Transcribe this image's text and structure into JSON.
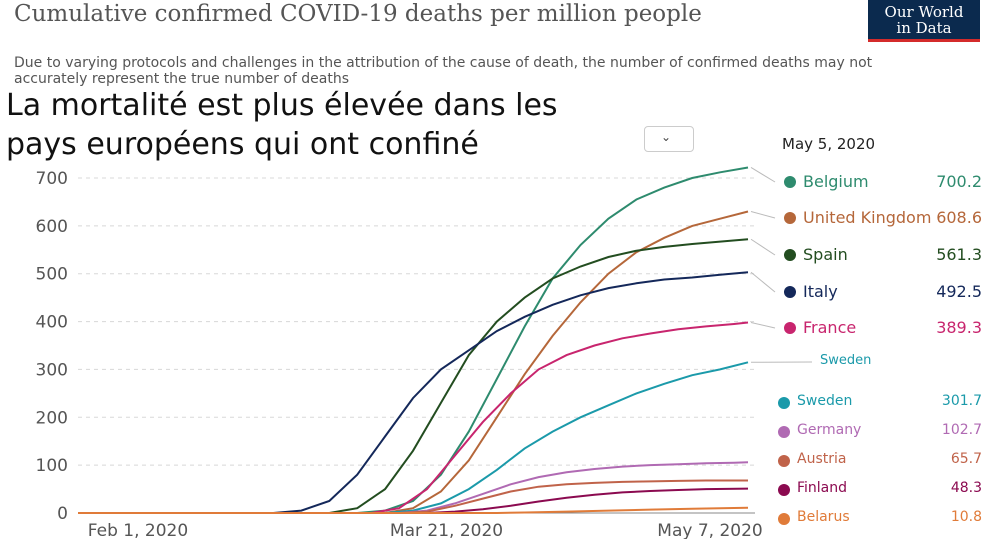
{
  "title": "Cumulative confirmed COVID-19 deaths per million people",
  "subtitle": "Due to varying protocols and challenges in the attribution of the cause of death, the number of confirmed deaths may not accurately represent the true number of deaths",
  "logo": {
    "line1": "Our World",
    "line2": "in Data",
    "bg": "#0b2a4e",
    "accent": "#d42b2b"
  },
  "overlay_text": "La mortalité est plus élevée dans les pays européens qui ont confiné",
  "dropdown_icon": "chevron-down-icon",
  "legend_date": "May 5, 2020",
  "sweden_tag": "Sweden",
  "chart_data": {
    "type": "line",
    "title": "Cumulative confirmed COVID-19 deaths per million people",
    "xlabel": "",
    "ylabel": "",
    "x_ticks": [
      "Feb 1, 2020",
      "Mar 21, 2020",
      "May 7, 2020"
    ],
    "y_ticks": [
      0,
      100,
      200,
      300,
      400,
      500,
      600,
      700
    ],
    "ylim": [
      0,
      720
    ],
    "xlim_days": [
      0,
      97
    ],
    "grid": true,
    "legend_placement": "right",
    "series": [
      {
        "name": "Belgium",
        "value_label": "700.2",
        "color": "#2e8b6e",
        "points": [
          [
            0,
            0
          ],
          [
            40,
            0
          ],
          [
            44,
            5
          ],
          [
            48,
            25
          ],
          [
            52,
            80
          ],
          [
            56,
            170
          ],
          [
            60,
            280
          ],
          [
            64,
            390
          ],
          [
            68,
            490
          ],
          [
            72,
            560
          ],
          [
            76,
            615
          ],
          [
            80,
            655
          ],
          [
            84,
            680
          ],
          [
            88,
            700
          ],
          [
            92,
            712
          ],
          [
            96,
            722
          ]
        ]
      },
      {
        "name": "United Kingdom",
        "value_label": "608.6",
        "color": "#b5673a",
        "points": [
          [
            0,
            0
          ],
          [
            44,
            0
          ],
          [
            48,
            10
          ],
          [
            52,
            45
          ],
          [
            56,
            110
          ],
          [
            60,
            200
          ],
          [
            64,
            290
          ],
          [
            68,
            370
          ],
          [
            72,
            440
          ],
          [
            76,
            500
          ],
          [
            80,
            545
          ],
          [
            84,
            575
          ],
          [
            88,
            600
          ],
          [
            92,
            615
          ],
          [
            96,
            630
          ]
        ]
      },
      {
        "name": "Spain",
        "value_label": "561.3",
        "color": "#234d20",
        "points": [
          [
            0,
            0
          ],
          [
            36,
            0
          ],
          [
            40,
            10
          ],
          [
            44,
            50
          ],
          [
            48,
            130
          ],
          [
            52,
            230
          ],
          [
            56,
            330
          ],
          [
            60,
            400
          ],
          [
            64,
            450
          ],
          [
            68,
            490
          ],
          [
            72,
            515
          ],
          [
            76,
            535
          ],
          [
            80,
            548
          ],
          [
            84,
            556
          ],
          [
            88,
            562
          ],
          [
            92,
            567
          ],
          [
            96,
            572
          ]
        ]
      },
      {
        "name": "Italy",
        "value_label": "492.5",
        "color": "#14285a",
        "points": [
          [
            0,
            0
          ],
          [
            28,
            0
          ],
          [
            32,
            5
          ],
          [
            36,
            25
          ],
          [
            40,
            80
          ],
          [
            44,
            160
          ],
          [
            48,
            240
          ],
          [
            52,
            300
          ],
          [
            56,
            340
          ],
          [
            60,
            380
          ],
          [
            64,
            410
          ],
          [
            68,
            435
          ],
          [
            72,
            455
          ],
          [
            76,
            470
          ],
          [
            80,
            480
          ],
          [
            84,
            488
          ],
          [
            88,
            492
          ],
          [
            92,
            498
          ],
          [
            96,
            503
          ]
        ]
      },
      {
        "name": "France",
        "value_label": "389.3",
        "color": "#c8256e",
        "points": [
          [
            0,
            0
          ],
          [
            42,
            0
          ],
          [
            46,
            10
          ],
          [
            50,
            50
          ],
          [
            54,
            120
          ],
          [
            58,
            190
          ],
          [
            62,
            250
          ],
          [
            66,
            300
          ],
          [
            70,
            330
          ],
          [
            74,
            350
          ],
          [
            78,
            365
          ],
          [
            82,
            375
          ],
          [
            86,
            384
          ],
          [
            90,
            390
          ],
          [
            94,
            395
          ],
          [
            96,
            398
          ]
        ]
      },
      {
        "name": "Sweden",
        "value_label": "301.7",
        "color": "#1b9aaa",
        "points": [
          [
            0,
            0
          ],
          [
            44,
            0
          ],
          [
            48,
            5
          ],
          [
            52,
            20
          ],
          [
            56,
            50
          ],
          [
            60,
            90
          ],
          [
            64,
            135
          ],
          [
            68,
            170
          ],
          [
            72,
            200
          ],
          [
            76,
            225
          ],
          [
            80,
            250
          ],
          [
            84,
            270
          ],
          [
            88,
            288
          ],
          [
            92,
            300
          ],
          [
            96,
            315
          ]
        ]
      },
      {
        "name": "Germany",
        "value_label": "102.7",
        "color": "#b06ab3",
        "points": [
          [
            0,
            0
          ],
          [
            46,
            0
          ],
          [
            50,
            5
          ],
          [
            54,
            20
          ],
          [
            58,
            40
          ],
          [
            62,
            60
          ],
          [
            66,
            75
          ],
          [
            70,
            85
          ],
          [
            74,
            92
          ],
          [
            78,
            97
          ],
          [
            82,
            100
          ],
          [
            86,
            102
          ],
          [
            90,
            104
          ],
          [
            94,
            105
          ],
          [
            96,
            106
          ]
        ]
      },
      {
        "name": "Austria",
        "value_label": "65.7",
        "color": "#c0634a",
        "points": [
          [
            0,
            0
          ],
          [
            46,
            0
          ],
          [
            50,
            3
          ],
          [
            54,
            15
          ],
          [
            58,
            30
          ],
          [
            62,
            45
          ],
          [
            66,
            55
          ],
          [
            70,
            60
          ],
          [
            74,
            63
          ],
          [
            78,
            65
          ],
          [
            82,
            66
          ],
          [
            86,
            67
          ],
          [
            90,
            68
          ],
          [
            96,
            68
          ]
        ]
      },
      {
        "name": "Finland",
        "value_label": "48.3",
        "color": "#8b0a50",
        "points": [
          [
            0,
            0
          ],
          [
            50,
            0
          ],
          [
            54,
            3
          ],
          [
            58,
            8
          ],
          [
            62,
            15
          ],
          [
            66,
            24
          ],
          [
            70,
            32
          ],
          [
            74,
            38
          ],
          [
            78,
            43
          ],
          [
            82,
            46
          ],
          [
            86,
            48
          ],
          [
            90,
            50
          ],
          [
            96,
            51
          ]
        ]
      },
      {
        "name": "Belarus",
        "value_label": "10.8",
        "color": "#e07b39",
        "points": [
          [
            0,
            0
          ],
          [
            60,
            0
          ],
          [
            64,
            1
          ],
          [
            70,
            3
          ],
          [
            76,
            5
          ],
          [
            82,
            7
          ],
          [
            88,
            9
          ],
          [
            92,
            10
          ],
          [
            96,
            11
          ]
        ]
      }
    ]
  }
}
